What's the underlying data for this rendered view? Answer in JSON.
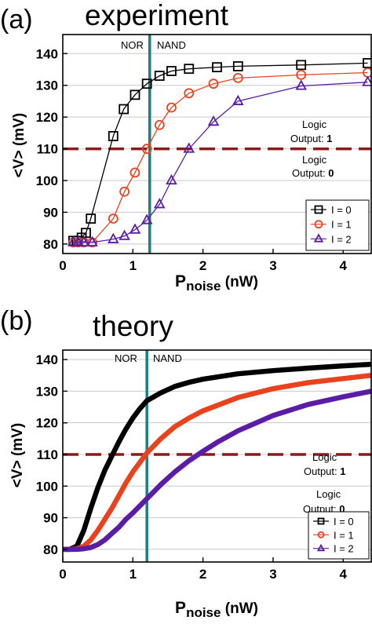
{
  "chart_data": [
    {
      "type": "line",
      "panel_label": "(a)",
      "title": "experiment",
      "xlabel_main": "P",
      "xlabel_sub": "noise",
      "xlabel_unit": " (nW)",
      "ylabel": "<V> (mV)",
      "xlim": [
        0,
        4.4
      ],
      "ylim": [
        77,
        146
      ],
      "xticks": [
        0,
        1,
        2,
        3,
        4
      ],
      "yticks": [
        80,
        90,
        100,
        110,
        120,
        130,
        140
      ],
      "grid": "horizontal",
      "vline": {
        "x": 1.24,
        "color": "#1a7f83"
      },
      "region_labels": {
        "left": "NOR",
        "right": "NAND"
      },
      "threshold": {
        "y": 110,
        "color": "#8b1a1a"
      },
      "logic_above": {
        "line1": "Logic",
        "line2": "Output: ",
        "value": "1"
      },
      "logic_below": {
        "line1": "Logic",
        "line2": "Output: ",
        "value": "0"
      },
      "legend_position": "lower-right",
      "series": [
        {
          "name": "I = 0",
          "color": "#000000",
          "marker": "square",
          "x": [
            0.15,
            0.2,
            0.27,
            0.33,
            0.4,
            0.72,
            0.87,
            1.03,
            1.2,
            1.38,
            1.55,
            1.8,
            2.2,
            2.5,
            3.4,
            4.35
          ],
          "y": [
            81,
            81,
            82,
            83.5,
            88,
            114,
            122.5,
            127,
            130.5,
            133,
            134.5,
            135.2,
            135.7,
            136,
            136.4,
            137
          ]
        },
        {
          "name": "I = 1",
          "color": "#e8431e",
          "marker": "circle",
          "x": [
            0.15,
            0.22,
            0.3,
            0.42,
            0.72,
            0.88,
            1.03,
            1.2,
            1.38,
            1.55,
            1.8,
            2.15,
            2.5,
            3.4,
            4.35
          ],
          "y": [
            80.5,
            80.5,
            80.5,
            80.5,
            88,
            96.5,
            102.5,
            110,
            117.5,
            123,
            127.5,
            130.5,
            132.3,
            133.3,
            134
          ]
        },
        {
          "name": "I = 2",
          "color": "#5b1da6",
          "marker": "triangle",
          "x": [
            0.15,
            0.22,
            0.3,
            0.42,
            0.72,
            0.88,
            1.03,
            1.2,
            1.38,
            1.55,
            1.8,
            2.15,
            2.5,
            3.4,
            4.35
          ],
          "y": [
            80.5,
            80.5,
            80.5,
            80.5,
            81.5,
            82.5,
            84.5,
            87.5,
            92.5,
            100,
            110,
            118.5,
            125,
            129.8,
            131
          ]
        }
      ]
    },
    {
      "type": "line",
      "panel_label": "(b)",
      "title": "theory",
      "xlabel_main": "P",
      "xlabel_sub": "noise",
      "xlabel_unit": " (nW)",
      "ylabel": "<V> (mV)",
      "xlim": [
        0,
        4.4
      ],
      "ylim": [
        76,
        143
      ],
      "xticks": [
        0,
        1,
        2,
        3,
        4
      ],
      "yticks": [
        80,
        90,
        100,
        110,
        120,
        130,
        140
      ],
      "grid": "horizontal",
      "vline": {
        "x": 1.2,
        "color": "#1a7f83"
      },
      "region_labels": {
        "left": "NOR",
        "right": "NAND"
      },
      "threshold": {
        "y": 110,
        "color": "#8b1a1a"
      },
      "logic_above": {
        "line1": "Logic",
        "line2": "Output: ",
        "value": "1"
      },
      "logic_below": {
        "line1": "Logic",
        "line2": "Output: ",
        "value": "0"
      },
      "legend_position": "lower-right",
      "series": [
        {
          "name": "I = 0",
          "color": "#000000",
          "marker": "square",
          "x": [
            0,
            0.1,
            0.2,
            0.3,
            0.4,
            0.5,
            0.6,
            0.7,
            0.8,
            0.9,
            1.0,
            1.1,
            1.2,
            1.4,
            1.6,
            1.8,
            2.0,
            2.5,
            3.0,
            3.5,
            4.0,
            4.4
          ],
          "y": [
            80,
            80,
            81,
            86,
            93,
            99.5,
            105,
            109.5,
            114,
            118,
            121.5,
            124.5,
            127,
            129.5,
            131.5,
            132.8,
            133.8,
            135.5,
            136.5,
            137.3,
            138,
            138.5
          ]
        },
        {
          "name": "I = 1",
          "color": "#e8431e",
          "marker": "circle",
          "x": [
            0,
            0.1,
            0.2,
            0.3,
            0.4,
            0.5,
            0.6,
            0.7,
            0.8,
            0.9,
            1.0,
            1.1,
            1.2,
            1.4,
            1.6,
            1.8,
            2.0,
            2.5,
            3.0,
            3.5,
            4.0,
            4.4
          ],
          "y": [
            80,
            80,
            80.2,
            81,
            83,
            86,
            89.5,
            93,
            97,
            101,
            104.5,
            107.5,
            110.5,
            115,
            118.8,
            121.5,
            123.8,
            128,
            130.8,
            132.7,
            134,
            135
          ]
        },
        {
          "name": "I = 2",
          "color": "#5b1da6",
          "marker": "triangle",
          "x": [
            0,
            0.1,
            0.2,
            0.3,
            0.4,
            0.5,
            0.6,
            0.7,
            0.8,
            0.9,
            1.0,
            1.2,
            1.4,
            1.6,
            1.8,
            2.0,
            2.2,
            2.5,
            3.0,
            3.5,
            4.0,
            4.4
          ],
          "y": [
            80,
            80,
            80,
            80.2,
            80.6,
            81.5,
            83,
            85,
            87,
            89.5,
            91.5,
            96,
            100.5,
            104.5,
            108,
            111,
            113.8,
            117.5,
            122.3,
            125.8,
            128.2,
            130
          ]
        }
      ]
    }
  ]
}
